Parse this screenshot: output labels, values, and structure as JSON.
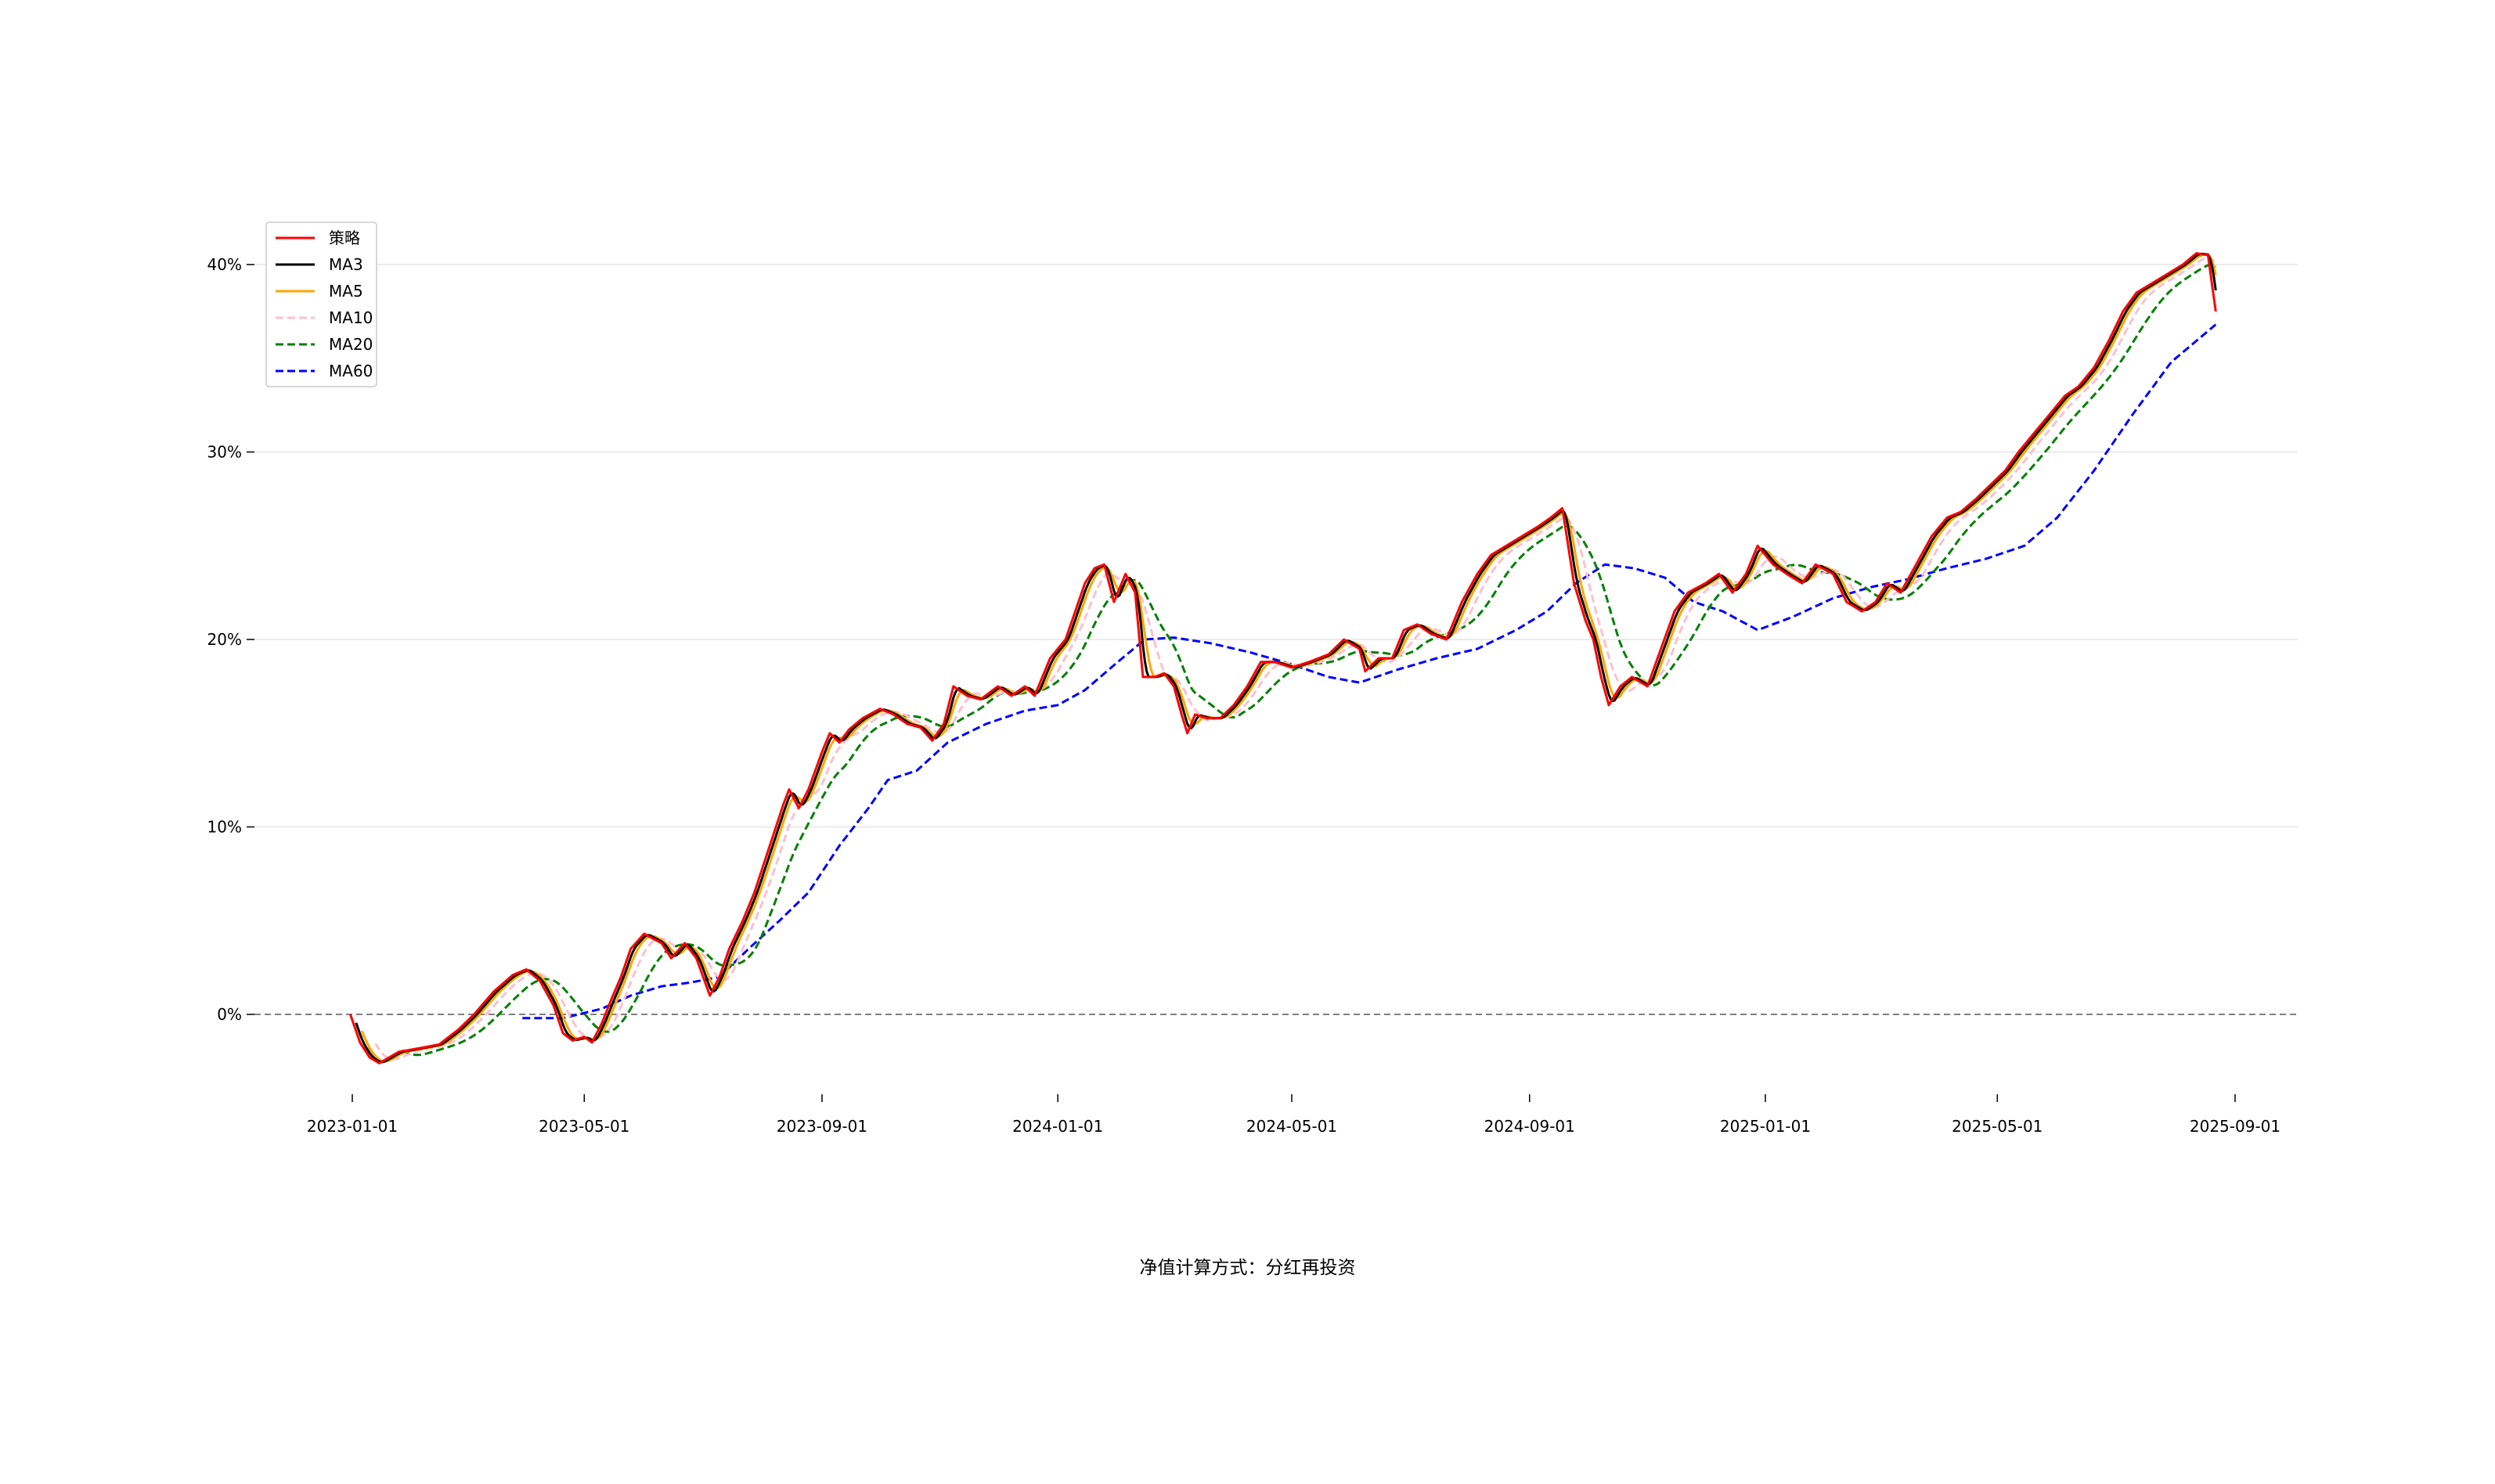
{
  "chart_data": {
    "type": "line",
    "title": "",
    "xlabel": "",
    "ylabel": "",
    "caption": "净值计算方式：分红再投资",
    "x_start": "2022-12-31",
    "x_end": "2025-08-22",
    "ylim": [
      -4.5,
      42
    ],
    "y_ticks": [
      0,
      10,
      20,
      30,
      40
    ],
    "y_tick_labels": [
      "0%",
      "10%",
      "20%",
      "30%",
      "40%"
    ],
    "x_ticks": [
      "2023-01-01",
      "2023-05-01",
      "2023-09-01",
      "2024-01-01",
      "2024-05-01",
      "2024-09-01",
      "2025-01-01",
      "2025-05-01",
      "2025-09-01"
    ],
    "grid": true,
    "baseline": 0,
    "legend_position": "top-left",
    "series_style": [
      {
        "name": "策略",
        "color": "#ff0000",
        "dash": "solid"
      },
      {
        "name": "MA3",
        "color": "#000000",
        "dash": "solid"
      },
      {
        "name": "MA5",
        "color": "#ffa500",
        "dash": "solid"
      },
      {
        "name": "MA10",
        "color": "#ffc0cb",
        "dash": "dashed"
      },
      {
        "name": "MA20",
        "color": "#008000",
        "dash": "dashed"
      },
      {
        "name": "MA60",
        "color": "#0000ff",
        "dash": "dashed"
      }
    ],
    "strategy_points": [
      [
        "2022-12-31",
        0.0
      ],
      [
        "2023-01-05",
        -1.5
      ],
      [
        "2023-01-10",
        -2.3
      ],
      [
        "2023-01-15",
        -2.6
      ],
      [
        "2023-01-25",
        -2.0
      ],
      [
        "2023-02-05",
        -1.8
      ],
      [
        "2023-02-15",
        -1.6
      ],
      [
        "2023-02-25",
        -0.8
      ],
      [
        "2023-03-05",
        0.0
      ],
      [
        "2023-03-10",
        0.6
      ],
      [
        "2023-03-15",
        1.2
      ],
      [
        "2023-03-25",
        2.1
      ],
      [
        "2023-04-01",
        2.4
      ],
      [
        "2023-04-08",
        1.8
      ],
      [
        "2023-04-15",
        0.5
      ],
      [
        "2023-04-20",
        -1.0
      ],
      [
        "2023-04-25",
        -1.4
      ],
      [
        "2023-05-01",
        -1.2
      ],
      [
        "2023-05-05",
        -1.5
      ],
      [
        "2023-05-10",
        -0.5
      ],
      [
        "2023-05-15",
        0.8
      ],
      [
        "2023-05-20",
        2.0
      ],
      [
        "2023-05-25",
        3.5
      ],
      [
        "2023-06-01",
        4.3
      ],
      [
        "2023-06-10",
        3.8
      ],
      [
        "2023-06-15",
        3.0
      ],
      [
        "2023-06-22",
        3.8
      ],
      [
        "2023-06-28",
        3.0
      ],
      [
        "2023-07-05",
        1.0
      ],
      [
        "2023-07-10",
        2.0
      ],
      [
        "2023-07-15",
        3.5
      ],
      [
        "2023-07-22",
        5.0
      ],
      [
        "2023-07-28",
        6.5
      ],
      [
        "2023-08-05",
        9.0
      ],
      [
        "2023-08-12",
        11.2
      ],
      [
        "2023-08-15",
        12.0
      ],
      [
        "2023-08-20",
        11.0
      ],
      [
        "2023-08-25",
        12.0
      ],
      [
        "2023-09-01",
        14.0
      ],
      [
        "2023-09-05",
        15.0
      ],
      [
        "2023-09-10",
        14.5
      ],
      [
        "2023-09-15",
        15.2
      ],
      [
        "2023-09-22",
        15.8
      ],
      [
        "2023-10-01",
        16.3
      ],
      [
        "2023-10-08",
        16.0
      ],
      [
        "2023-10-15",
        15.5
      ],
      [
        "2023-10-22",
        15.3
      ],
      [
        "2023-10-28",
        14.6
      ],
      [
        "2023-11-03",
        15.5
      ],
      [
        "2023-11-08",
        17.5
      ],
      [
        "2023-11-15",
        17.0
      ],
      [
        "2023-11-22",
        16.8
      ],
      [
        "2023-12-01",
        17.5
      ],
      [
        "2023-12-08",
        17.0
      ],
      [
        "2023-12-15",
        17.5
      ],
      [
        "2023-12-20",
        17.0
      ],
      [
        "2023-12-28",
        19.0
      ],
      [
        "2024-01-05",
        20.0
      ],
      [
        "2024-01-10",
        21.5
      ],
      [
        "2024-01-15",
        23.0
      ],
      [
        "2024-01-20",
        23.8
      ],
      [
        "2024-01-25",
        24.0
      ],
      [
        "2024-01-30",
        22.0
      ],
      [
        "2024-02-05",
        23.5
      ],
      [
        "2024-02-10",
        22.5
      ],
      [
        "2024-02-14",
        18.0
      ],
      [
        "2024-02-20",
        18.0
      ],
      [
        "2024-02-25",
        18.2
      ],
      [
        "2024-03-01",
        17.5
      ],
      [
        "2024-03-05",
        16.0
      ],
      [
        "2024-03-08",
        15.0
      ],
      [
        "2024-03-12",
        16.0
      ],
      [
        "2024-03-18",
        15.8
      ],
      [
        "2024-03-25",
        15.8
      ],
      [
        "2024-04-01",
        16.5
      ],
      [
        "2024-04-08",
        17.5
      ],
      [
        "2024-04-15",
        18.8
      ],
      [
        "2024-04-22",
        18.8
      ],
      [
        "2024-05-01",
        18.5
      ],
      [
        "2024-05-10",
        18.8
      ],
      [
        "2024-05-20",
        19.2
      ],
      [
        "2024-05-28",
        20.0
      ],
      [
        "2024-06-05",
        19.5
      ],
      [
        "2024-06-08",
        18.3
      ],
      [
        "2024-06-15",
        19.0
      ],
      [
        "2024-06-22",
        19.0
      ],
      [
        "2024-06-28",
        20.5
      ],
      [
        "2024-07-05",
        20.8
      ],
      [
        "2024-07-12",
        20.3
      ],
      [
        "2024-07-20",
        20.0
      ],
      [
        "2024-07-28",
        22.0
      ],
      [
        "2024-08-05",
        23.5
      ],
      [
        "2024-08-12",
        24.5
      ],
      [
        "2024-08-20",
        25.0
      ],
      [
        "2024-08-28",
        25.5
      ],
      [
        "2024-09-05",
        26.0
      ],
      [
        "2024-09-12",
        26.5
      ],
      [
        "2024-09-18",
        27.0
      ],
      [
        "2024-09-24",
        23.0
      ],
      [
        "2024-09-30",
        21.0
      ],
      [
        "2024-10-04",
        20.0
      ],
      [
        "2024-10-08",
        18.0
      ],
      [
        "2024-10-12",
        16.5
      ],
      [
        "2024-10-18",
        17.5
      ],
      [
        "2024-10-24",
        18.0
      ],
      [
        "2024-11-01",
        17.5
      ],
      [
        "2024-11-08",
        19.5
      ],
      [
        "2024-11-15",
        21.5
      ],
      [
        "2024-11-22",
        22.5
      ],
      [
        "2024-12-01",
        23.0
      ],
      [
        "2024-12-08",
        23.5
      ],
      [
        "2024-12-15",
        22.5
      ],
      [
        "2024-12-22",
        23.5
      ],
      [
        "2024-12-28",
        25.0
      ],
      [
        "2025-01-05",
        24.0
      ],
      [
        "2025-01-12",
        23.5
      ],
      [
        "2025-01-20",
        23.0
      ],
      [
        "2025-01-27",
        24.0
      ],
      [
        "2025-02-05",
        23.5
      ],
      [
        "2025-02-12",
        22.0
      ],
      [
        "2025-02-20",
        21.5
      ],
      [
        "2025-02-27",
        22.0
      ],
      [
        "2025-03-05",
        23.0
      ],
      [
        "2025-03-12",
        22.5
      ],
      [
        "2025-03-20",
        24.0
      ],
      [
        "2025-03-28",
        25.5
      ],
      [
        "2025-04-05",
        26.5
      ],
      [
        "2025-04-12",
        26.8
      ],
      [
        "2025-04-20",
        27.5
      ],
      [
        "2025-04-28",
        28.3
      ],
      [
        "2025-05-05",
        29.0
      ],
      [
        "2025-05-12",
        30.0
      ],
      [
        "2025-05-20",
        31.0
      ],
      [
        "2025-05-28",
        32.0
      ],
      [
        "2025-06-05",
        33.0
      ],
      [
        "2025-06-12",
        33.5
      ],
      [
        "2025-06-20",
        34.5
      ],
      [
        "2025-06-28",
        36.0
      ],
      [
        "2025-07-05",
        37.5
      ],
      [
        "2025-07-12",
        38.5
      ],
      [
        "2025-07-20",
        39.0
      ],
      [
        "2025-07-28",
        39.5
      ],
      [
        "2025-08-05",
        40.0
      ],
      [
        "2025-08-12",
        40.6
      ],
      [
        "2025-08-18",
        40.5
      ],
      [
        "2025-08-22",
        37.5
      ]
    ],
    "ma60_points": [
      [
        "2023-03-30",
        -0.2
      ],
      [
        "2023-04-20",
        -0.2
      ],
      [
        "2023-05-10",
        0.3
      ],
      [
        "2023-05-25",
        1.0
      ],
      [
        "2023-06-10",
        1.5
      ],
      [
        "2023-06-25",
        1.7
      ],
      [
        "2023-07-10",
        2.0
      ],
      [
        "2023-07-25",
        3.5
      ],
      [
        "2023-08-10",
        5.0
      ],
      [
        "2023-08-25",
        6.5
      ],
      [
        "2023-09-10",
        9.0
      ],
      [
        "2023-09-25",
        11.0
      ],
      [
        "2023-10-05",
        12.5
      ],
      [
        "2023-10-20",
        13.0
      ],
      [
        "2023-11-05",
        14.5
      ],
      [
        "2023-11-25",
        15.5
      ],
      [
        "2023-12-15",
        16.2
      ],
      [
        "2024-01-01",
        16.5
      ],
      [
        "2024-01-15",
        17.3
      ],
      [
        "2024-02-01",
        18.8
      ],
      [
        "2024-02-15",
        20.0
      ],
      [
        "2024-03-01",
        20.1
      ],
      [
        "2024-03-20",
        19.8
      ],
      [
        "2024-04-10",
        19.3
      ],
      [
        "2024-04-30",
        18.7
      ],
      [
        "2024-05-20",
        18.0
      ],
      [
        "2024-06-05",
        17.7
      ],
      [
        "2024-06-25",
        18.4
      ],
      [
        "2024-07-15",
        19.0
      ],
      [
        "2024-08-05",
        19.5
      ],
      [
        "2024-08-25",
        20.5
      ],
      [
        "2024-09-10",
        21.5
      ],
      [
        "2024-09-25",
        23.0
      ],
      [
        "2024-10-10",
        24.0
      ],
      [
        "2024-10-25",
        23.8
      ],
      [
        "2024-11-10",
        23.3
      ],
      [
        "2024-11-25",
        22.0
      ],
      [
        "2024-12-10",
        21.5
      ],
      [
        "2024-12-28",
        20.5
      ],
      [
        "2025-01-15",
        21.2
      ],
      [
        "2025-02-05",
        22.2
      ],
      [
        "2025-02-25",
        22.8
      ],
      [
        "2025-03-15",
        23.2
      ],
      [
        "2025-04-05",
        23.8
      ],
      [
        "2025-04-25",
        24.3
      ],
      [
        "2025-05-15",
        25.0
      ],
      [
        "2025-06-01",
        26.5
      ],
      [
        "2025-06-20",
        29.0
      ],
      [
        "2025-07-10",
        32.0
      ],
      [
        "2025-07-30",
        34.8
      ],
      [
        "2025-08-22",
        36.8
      ]
    ]
  }
}
